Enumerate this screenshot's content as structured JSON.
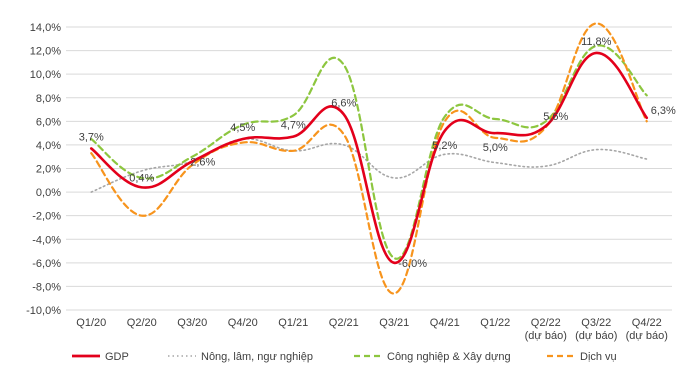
{
  "chart_data": {
    "type": "line",
    "categories": [
      [
        "Q1/20"
      ],
      [
        "Q2/20"
      ],
      [
        "Q3/20"
      ],
      [
        "Q4/20"
      ],
      [
        "Q1/21"
      ],
      [
        "Q2/21"
      ],
      [
        "Q3/21"
      ],
      [
        "Q4/21"
      ],
      [
        "Q1/22"
      ],
      [
        "Q2/22",
        "(dự báo)"
      ],
      [
        "Q3/22",
        "(dự báo)"
      ],
      [
        "Q4/22",
        "(dự báo)"
      ]
    ],
    "ylim": [
      -10,
      14
    ],
    "yticks": [
      -10,
      -8,
      -6,
      -4,
      -2,
      0,
      2,
      4,
      6,
      8,
      10,
      12,
      14
    ],
    "ytick_labels": [
      "-10,0%",
      "-8,0%",
      "-6,0%",
      "-4,0%",
      "-2,0%",
      "0,0%",
      "2,0%",
      "4,0%",
      "6,0%",
      "8,0%",
      "10,0%",
      "12,0%",
      "14,0%"
    ],
    "grid": true,
    "legend_position": "bottom",
    "series": [
      {
        "name": "GDP",
        "style": "solid",
        "color": "#e3001b",
        "values": [
          3.7,
          0.4,
          2.6,
          4.5,
          4.7,
          6.6,
          -6.0,
          5.2,
          5.0,
          5.6,
          11.8,
          6.3
        ]
      },
      {
        "name": "Nông, lâm, ngư nghiệp",
        "style": "dotted",
        "color": "#a6a6a6",
        "values": [
          0.0,
          1.8,
          2.6,
          4.5,
          3.5,
          4.0,
          1.2,
          3.2,
          2.5,
          2.2,
          3.6,
          2.8
        ]
      },
      {
        "name": "Công nghiệp & Xây dựng",
        "style": "dashed",
        "color": "#8dc63f",
        "values": [
          4.5,
          1.2,
          3.0,
          5.7,
          6.5,
          10.8,
          -5.6,
          6.4,
          6.2,
          6.0,
          12.4,
          8.2
        ]
      },
      {
        "name": "Dịch vụ",
        "style": "dashed",
        "color": "#f7941d",
        "values": [
          3.3,
          -2.0,
          2.3,
          4.2,
          3.5,
          4.9,
          -8.6,
          6.0,
          4.6,
          5.5,
          14.3,
          6.0
        ]
      }
    ],
    "data_labels": [
      "3,7%",
      "0,4%",
      "2,6%",
      "4,5%",
      "4,7%",
      "6,6%",
      "-6,0%",
      "5,2%",
      "5,0%",
      "5,6%",
      "11,8%",
      "6,3%"
    ]
  }
}
